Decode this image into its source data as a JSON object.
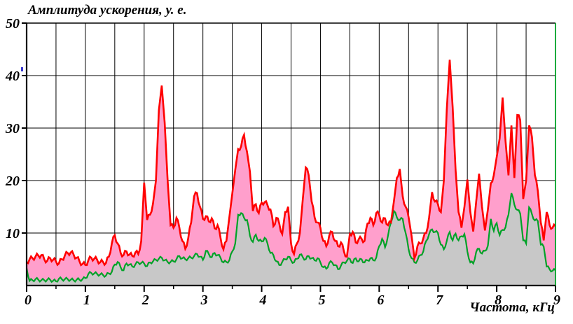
{
  "title": "Амплитуда ускорения, у. е.",
  "chart_data": {
    "type": "area",
    "title": "",
    "ylabel": "Амплитуда ускорения, у. е.",
    "xlabel": "Частота, кГц",
    "xlim": [
      0,
      9
    ],
    "ylim": [
      0,
      50
    ],
    "x_start": 0,
    "x_step": 0.05,
    "grid": {
      "visible": true,
      "x_step": 0.5,
      "y_step": 10
    },
    "legend": "none",
    "series": [
      {
        "name": "upper-envelope-red",
        "values": [
          4.4,
          5.0,
          5.2,
          5.5,
          5.7,
          5.8,
          5.0,
          4.7,
          5.2,
          4.9,
          4.6,
          4.2,
          5.0,
          5.7,
          6.2,
          6.3,
          5.9,
          5.3,
          4.6,
          4.1,
          3.9,
          4.8,
          5.3,
          5.1,
          4.9,
          4.4,
          4.5,
          4.3,
          5.5,
          8.0,
          9.6,
          8.0,
          6.2,
          5.8,
          6.5,
          5.9,
          5.6,
          6.3,
          6.0,
          8.5,
          19.6,
          12.5,
          13.5,
          15.6,
          20.0,
          33.4,
          38.1,
          31.0,
          20.0,
          11.5,
          11.0,
          12.9,
          11.0,
          8.5,
          7.0,
          9.0,
          12.0,
          17.0,
          17.6,
          15.0,
          12.7,
          13.2,
          12.2,
          12.8,
          10.9,
          11.5,
          9.1,
          6.9,
          8.5,
          13.0,
          17.5,
          22.0,
          26.0,
          26.5,
          28.7,
          25.5,
          21.7,
          14.2,
          15.5,
          13.8,
          15.8,
          15.9,
          15.3,
          14.5,
          11.3,
          12.9,
          11.8,
          9.8,
          14.0,
          15.0,
          8.0,
          6.0,
          8.0,
          10.0,
          16.5,
          22.5,
          21.0,
          16.0,
          13.0,
          12.0,
          11.0,
          8.5,
          7.5,
          9.5,
          10.2,
          8.5,
          7.5,
          8.2,
          6.5,
          5.5,
          9.8,
          10.2,
          8.2,
          8.8,
          8.9,
          8.5,
          11.8,
          12.9,
          11.5,
          13.8,
          13.5,
          12.0,
          12.8,
          11.5,
          12.0,
          16.0,
          20.5,
          22.2,
          17.0,
          15.0,
          13.0,
          9.5,
          5.2,
          7.5,
          8.0,
          9.0,
          10.0,
          13.0,
          17.8,
          16.0,
          15.5,
          14.0,
          20.0,
          33.5,
          43.0,
          34.0,
          22.0,
          14.0,
          11.0,
          15.0,
          20.2,
          14.0,
          10.3,
          16.0,
          21.3,
          15.0,
          10.5,
          14.5,
          19.5,
          21.0,
          24.5,
          28.0,
          35.8,
          27.5,
          21.0,
          30.5,
          20.5,
          32.5,
          31.5,
          16.5,
          20.0,
          30.5,
          28.3,
          21.0,
          18.0,
          12.0,
          8.6,
          14.0,
          11.5,
          11.0,
          11.3
        ]
      },
      {
        "name": "lower-envelope-green",
        "values": [
          3.3,
          0.9,
          1.0,
          1.2,
          1.1,
          1.0,
          1.0,
          1.1,
          1.1,
          0.9,
          0.8,
          1.3,
          1.2,
          1.2,
          1.2,
          1.1,
          1.0,
          1.1,
          1.1,
          1.2,
          1.4,
          2.2,
          2.4,
          2.3,
          2.2,
          2.1,
          2.0,
          1.9,
          2.3,
          2.6,
          4.0,
          4.5,
          3.5,
          2.9,
          4.2,
          4.0,
          3.6,
          4.0,
          4.4,
          4.3,
          4.2,
          3.7,
          4.4,
          4.6,
          4.9,
          5.1,
          5.3,
          4.8,
          4.5,
          4.5,
          4.6,
          5.0,
          5.6,
          5.2,
          5.0,
          5.2,
          5.3,
          5.6,
          6.0,
          5.5,
          4.9,
          6.6,
          6.0,
          5.4,
          6.2,
          5.8,
          5.3,
          4.4,
          4.5,
          4.8,
          6.5,
          8.0,
          13.5,
          13.8,
          12.9,
          12.5,
          9.5,
          8.3,
          9.7,
          8.5,
          8.4,
          9.1,
          8.0,
          6.2,
          5.8,
          4.6,
          3.9,
          4.5,
          5.0,
          5.5,
          4.8,
          4.4,
          5.1,
          5.9,
          5.4,
          5.0,
          5.6,
          5.2,
          4.8,
          5.2,
          4.4,
          3.5,
          3.2,
          4.3,
          4.4,
          3.9,
          3.1,
          3.8,
          4.4,
          4.7,
          5.1,
          4.3,
          5.2,
          4.6,
          5.0,
          4.4,
          4.8,
          5.2,
          4.8,
          5.3,
          7.5,
          8.9,
          7.3,
          9.5,
          12.0,
          14.2,
          13.0,
          12.5,
          12.7,
          10.0,
          6.9,
          5.2,
          4.4,
          4.8,
          5.8,
          6.5,
          8.5,
          9.8,
          10.7,
          10.2,
          10.0,
          7.8,
          6.9,
          8.5,
          10.2,
          8.6,
          9.9,
          8.6,
          9.4,
          9.8,
          6.5,
          4.4,
          4.2,
          6.4,
          7.0,
          6.1,
          6.6,
          7.6,
          12.7,
          10.4,
          11.9,
          9.6,
          10.6,
          11.1,
          13.5,
          17.6,
          15.4,
          14.4,
          13.7,
          8.6,
          8.0,
          14.9,
          13.6,
          12.4,
          12.3,
          7.8,
          7.4,
          3.6,
          3.1,
          2.8,
          2.9
        ]
      }
    ]
  },
  "axis": {
    "y_ticks": [
      50,
      40,
      30,
      20,
      10
    ],
    "y_tick_labels": [
      "50",
      "40",
      "30",
      "20",
      "10"
    ],
    "x_ticks": [
      0,
      1,
      2,
      3,
      4,
      5,
      6,
      7,
      8,
      9
    ],
    "x_tick_labels": [
      "0",
      "1",
      "2",
      "3",
      "4",
      "5",
      "6",
      "7",
      "8",
      "9"
    ],
    "x_minor_tick_step": 0.5
  },
  "colors": {
    "red_line": "#ff0000",
    "pink_fill": "#ff9fcc",
    "green_line": "#00a228",
    "gray_fill": "#c8c8c8",
    "grid": "#000000",
    "axis": "#000000",
    "right_border": "#00a228",
    "text": "#000000",
    "background": "#ffffff",
    "stray_mark": "#3a3ad0"
  }
}
